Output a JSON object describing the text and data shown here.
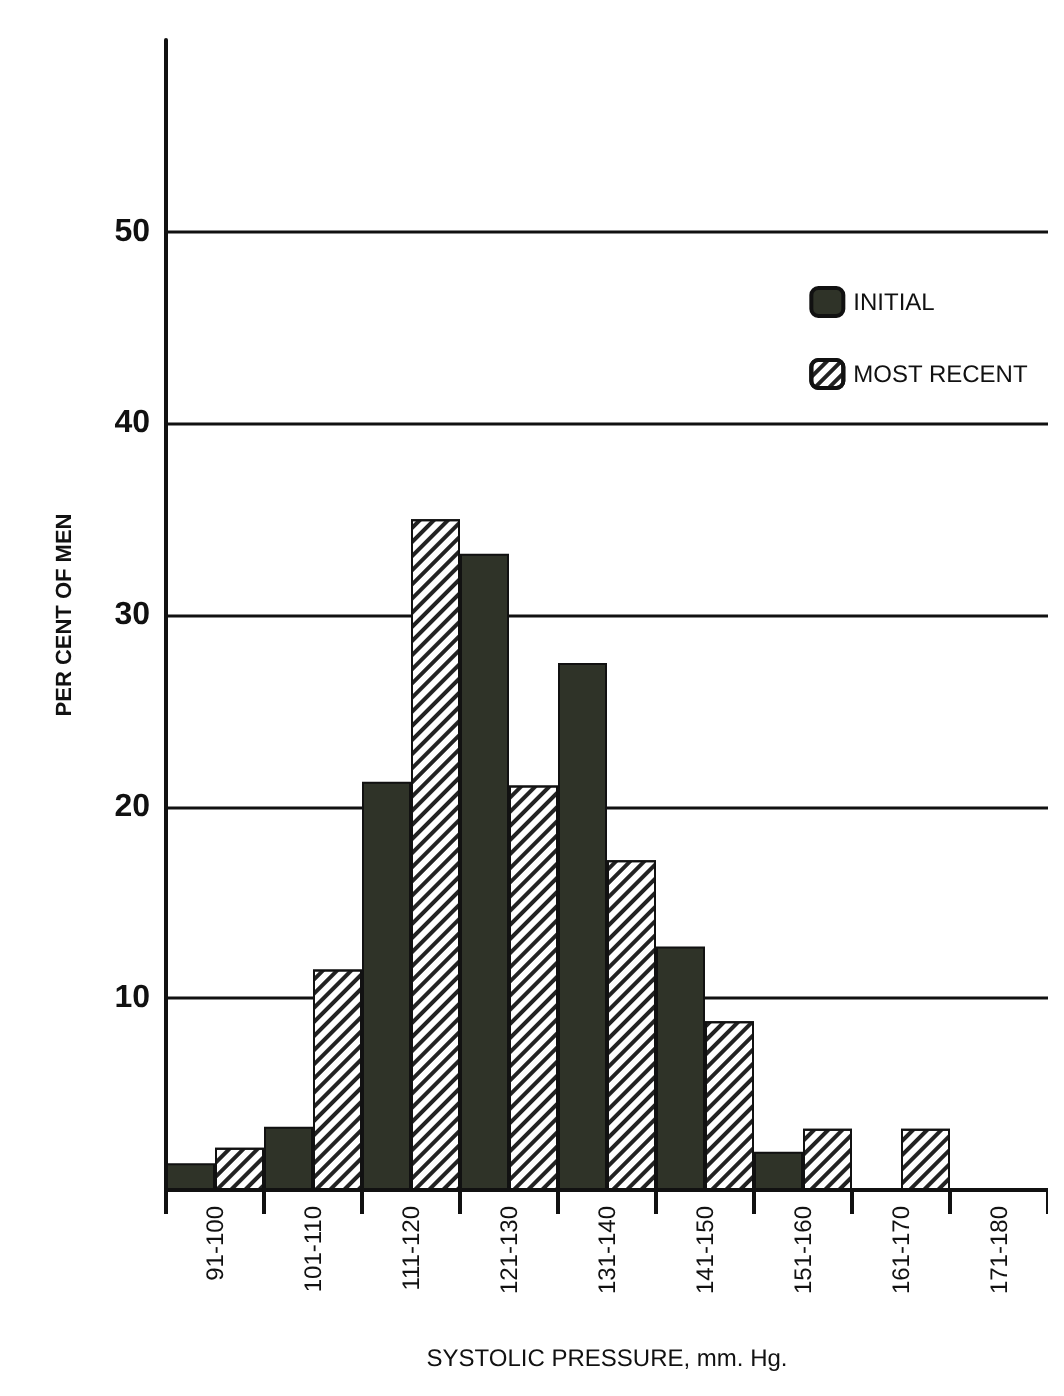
{
  "chart_data": {
    "type": "bar",
    "xlabel": "SYSTOLIC PRESSURE, mm. Hg.",
    "ylabel": "PER CENT OF MEN",
    "categories": [
      "91-100",
      "101-110",
      "111-120",
      "121-130",
      "131-140",
      "141-150",
      "151-160",
      "161-170",
      "171-180"
    ],
    "series": [
      {
        "name": "INITIAL",
        "color": "#2f3328",
        "values": [
          1.4,
          3.3,
          21.3,
          33.2,
          27.5,
          12.7,
          2.0,
          0,
          0
        ]
      },
      {
        "name": "MOST RECENT",
        "color": "#ffffff",
        "values": [
          2.2,
          11.5,
          35,
          21.1,
          17.2,
          8.8,
          3.2,
          3.2,
          0
        ]
      }
    ],
    "ylim": [
      0,
      60
    ],
    "yticks": [
      10,
      20,
      30,
      40,
      50
    ],
    "grid": "y",
    "legend": "top right"
  }
}
